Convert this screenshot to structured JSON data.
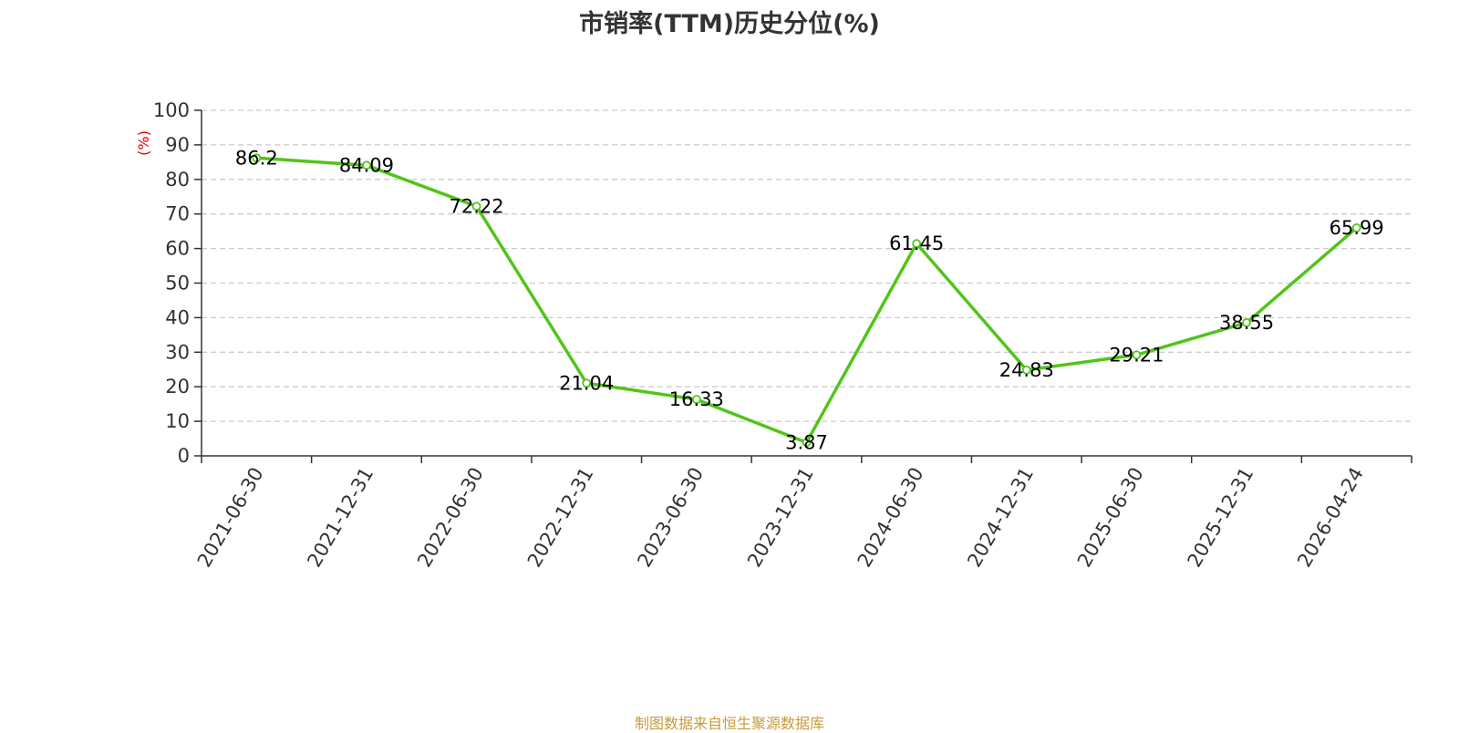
{
  "chart_data": {
    "type": "line",
    "title": "市销率(TTM)历史分位(%)",
    "ylabel": "(%)",
    "xlabel": "",
    "ylim": [
      0,
      100
    ],
    "yticks": [
      0,
      10,
      20,
      30,
      40,
      50,
      60,
      70,
      80,
      90,
      100
    ],
    "grid": true,
    "categories": [
      "2021-06-30",
      "2021-12-31",
      "2022-06-30",
      "2022-12-31",
      "2023-06-30",
      "2023-12-31",
      "2024-06-30",
      "2024-12-31",
      "2025-06-30",
      "2025-12-31",
      "2026-04-24"
    ],
    "series": [
      {
        "values": [
          86.2,
          84.09,
          72.22,
          21.04,
          16.33,
          3.87,
          61.45,
          24.83,
          29.21,
          38.55,
          65.99
        ],
        "labels": [
          "86.2",
          "84.09",
          "72.22",
          "21.04",
          "16.33",
          "3.87",
          "61.45",
          "24.83",
          "29.21",
          "38.55",
          "65.99"
        ]
      }
    ],
    "colors": {
      "line": "#52c41a",
      "grid": "#cccccc",
      "axis": "#333333",
      "ylabel": "#e00000"
    }
  },
  "source_note": "制图数据来自恒生聚源数据库"
}
